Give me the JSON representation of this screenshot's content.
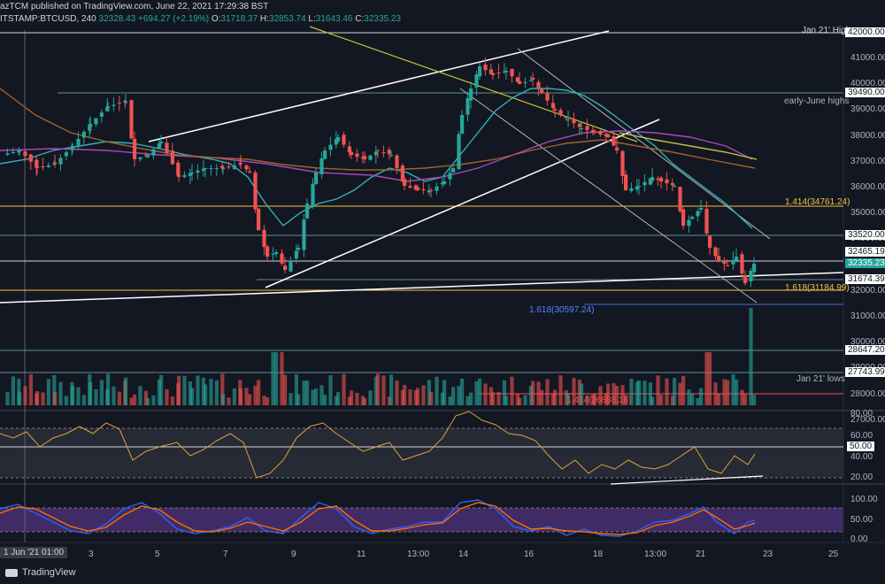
{
  "header": {
    "title": "azTCM published on TradingView.com, June 22, 2021 17:29:38 BST",
    "symbol": "ITSTAMP:BTCUSD, 240",
    "last": "32328.43",
    "change": "+694.27 (+2.19%)",
    "o_label": "O:",
    "o": "31718.37",
    "h_label": "H:",
    "h": "32853.74",
    "l_label": "L:",
    "l": "31643.46",
    "c_label": "C:",
    "c": "32335.23"
  },
  "footer": {
    "logo_text": "TradingView"
  },
  "x_axis": {
    "highlight_label": "1 Jun '21  01:00",
    "ticks": [
      "3",
      "5",
      "7",
      "9",
      "11",
      "13:00",
      "14",
      "16",
      "18",
      "13:00",
      "21",
      "23",
      "25"
    ]
  },
  "price_axis": {
    "ticks": [
      "41000.00",
      "40000.00",
      "39000.00",
      "38000.00",
      "37000.00",
      "36000.00",
      "35000.00",
      "34000.00",
      "33000.00",
      "32000.00",
      "31000.00",
      "30000.00",
      "29000.00",
      "28000.00",
      "27000.00"
    ],
    "badges": [
      {
        "value": "42000.00",
        "color": "#ffffff",
        "text_color": "#131722"
      },
      {
        "value": "39490.00",
        "color": "#ffffff",
        "text_color": "#131722"
      },
      {
        "value": "33520.00",
        "color": "#ffffff",
        "text_color": "#131722"
      },
      {
        "value": "32465.19",
        "color": "#ffffff",
        "text_color": "#131722"
      },
      {
        "value": "32335.23",
        "color": "#26a69a",
        "text_color": "#ffffff"
      },
      {
        "value": "31674.39",
        "color": "#ffffff",
        "text_color": "#131722"
      },
      {
        "value": "28647.20",
        "color": "#ffffff",
        "text_color": "#131722"
      },
      {
        "value": "27743.99",
        "color": "#ffffff",
        "text_color": "#131722"
      }
    ]
  },
  "annotations": {
    "jan21_high": "Jan 21' High",
    "early_june_highs": "early-June highs",
    "fib_1414": "1.414(34761.24)",
    "fib_1618_upper": "1.618(31184.99)",
    "fib_1618_lower": "1.618(30597.24)",
    "jan21_lows": "Jan 21' lows",
    "fib_bottom": "1.414(26838.16)"
  },
  "rsi_axis": {
    "ticks": [
      "80.00",
      "60.00",
      "40.00",
      "20.00"
    ],
    "badge": "50.00"
  },
  "stoch_axis": {
    "ticks": [
      "100.00",
      "50.00",
      "0.00"
    ]
  },
  "colors": {
    "background": "#131722",
    "up": "#26a69a",
    "down": "#ef5350",
    "ma_teal": "#2bb5b8",
    "ma_magenta": "#ab47bc",
    "ma_yellow": "#c9c13b",
    "ma_orange": "#a0622d",
    "level_white": "#d1d4dc",
    "fib_gold": "#f5c242",
    "rsi_line": "#e0a23b",
    "stoch_k": "#2962ff",
    "stoch_d": "#ff6d00"
  }
}
